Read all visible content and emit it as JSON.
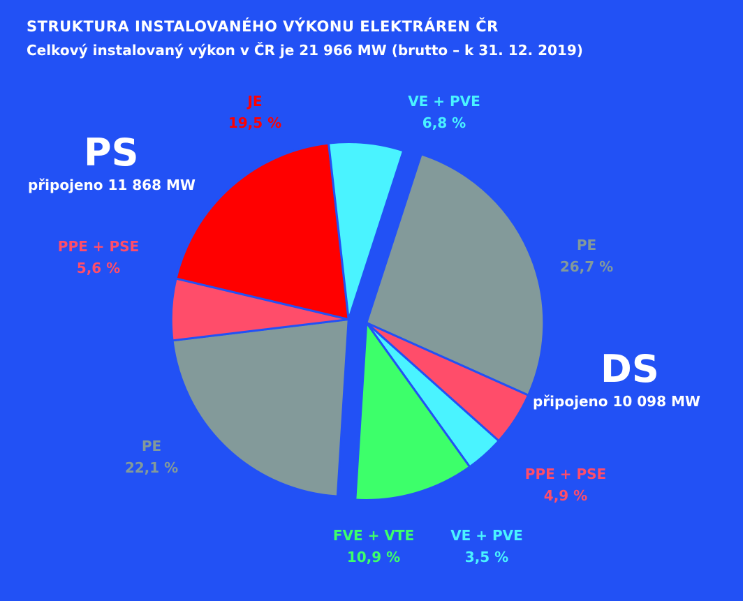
{
  "title": "STRUKTURA INSTALOVANÉHO VÝKONU ELEKTRÁREN ČR",
  "subtitle": "Celkový instalovaný výkon v ČR je 21 966 MW (brutto – k 31. 12. 2019)",
  "groups": {
    "ps": {
      "title": "PS",
      "subtitle": "připojeno 11 868 MW"
    },
    "ds": {
      "title": "DS",
      "subtitle": "připojeno 10 098 MW"
    }
  },
  "colors": {
    "background": "#2251f5",
    "je": "#ff0000",
    "ve_pve": "#4af3ff",
    "pe": "#839a9a",
    "ppe_pse": "#ff4d6a",
    "fve_vte": "#3dff6a"
  },
  "chart_data": {
    "type": "pie",
    "slices": [
      {
        "id": "ds-pe",
        "group": "DS",
        "name": "PE",
        "value": 26.7,
        "value_label": "26,7 %",
        "color": "#839a9a"
      },
      {
        "id": "ds-ppe-pse",
        "group": "DS",
        "name": "PPE + PSE",
        "value": 4.9,
        "value_label": "4,9 %",
        "color": "#ff4d6a"
      },
      {
        "id": "ds-ve-pve",
        "group": "DS",
        "name": "VE + PVE",
        "value": 3.5,
        "value_label": "3,5 %",
        "color": "#4af3ff"
      },
      {
        "id": "ds-fve-vte",
        "group": "DS",
        "name": "FVE + VTE",
        "value": 10.9,
        "value_label": "10,9 %",
        "color": "#3dff6a"
      },
      {
        "id": "ps-pe",
        "group": "PS",
        "name": "PE",
        "value": 22.1,
        "value_label": "22,1 %",
        "color": "#839a9a"
      },
      {
        "id": "ps-ppe-pse",
        "group": "PS",
        "name": "PPE + PSE",
        "value": 5.6,
        "value_label": "5,6 %",
        "color": "#ff4d6a"
      },
      {
        "id": "ps-je",
        "group": "PS",
        "name": "JE",
        "value": 19.5,
        "value_label": "19,5 %",
        "color": "#ff0000"
      },
      {
        "id": "ps-ve-pve",
        "group": "PS",
        "name": "VE + PVE",
        "value": 6.8,
        "value_label": "6,8 %",
        "color": "#4af3ff"
      }
    ]
  }
}
